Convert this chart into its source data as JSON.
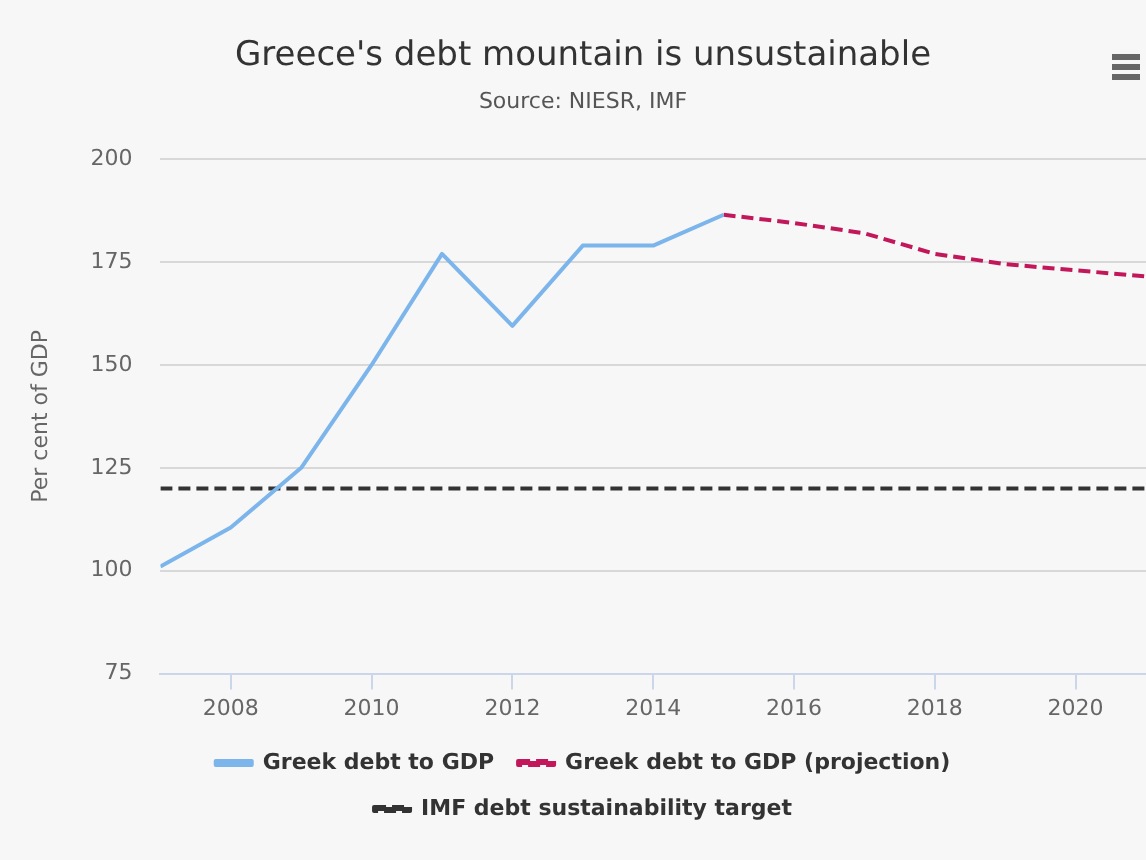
{
  "chart_data": {
    "type": "line",
    "title": "Greece's debt mountain is unsustainable",
    "subtitle": "Source: NIESR, IMF",
    "ylabel": "Per cent of GDP",
    "xlim": [
      2007,
      2021
    ],
    "xticks": [
      2008,
      2010,
      2012,
      2014,
      2016,
      2018,
      2020
    ],
    "ylim": [
      75,
      200
    ],
    "yticks": [
      75,
      100,
      125,
      150,
      175,
      200
    ],
    "grid": "y",
    "legend": "bottom",
    "marker": "none",
    "series": [
      {
        "name": "Greek debt to GDP",
        "color": "#7cb5ec",
        "line_style": "solid",
        "x": [
          2007,
          2008,
          2009,
          2010,
          2011,
          2012,
          2013,
          2014,
          2015
        ],
        "values": [
          101,
          110.5,
          125,
          150,
          177,
          159.5,
          179,
          179,
          186.5
        ]
      },
      {
        "name": "Greek debt to GDP (projection)",
        "color": "#c2185b",
        "line_style": "dashed",
        "x": [
          2015,
          2016,
          2017,
          2018,
          2019,
          2020,
          2021
        ],
        "values": [
          186.5,
          184.5,
          182,
          177,
          174.5,
          173,
          171.5
        ]
      },
      {
        "name": "IMF debt sustainability target",
        "color": "#333333",
        "line_style": "dashed",
        "x": [
          2007,
          2021
        ],
        "values": [
          120,
          120
        ]
      }
    ]
  }
}
